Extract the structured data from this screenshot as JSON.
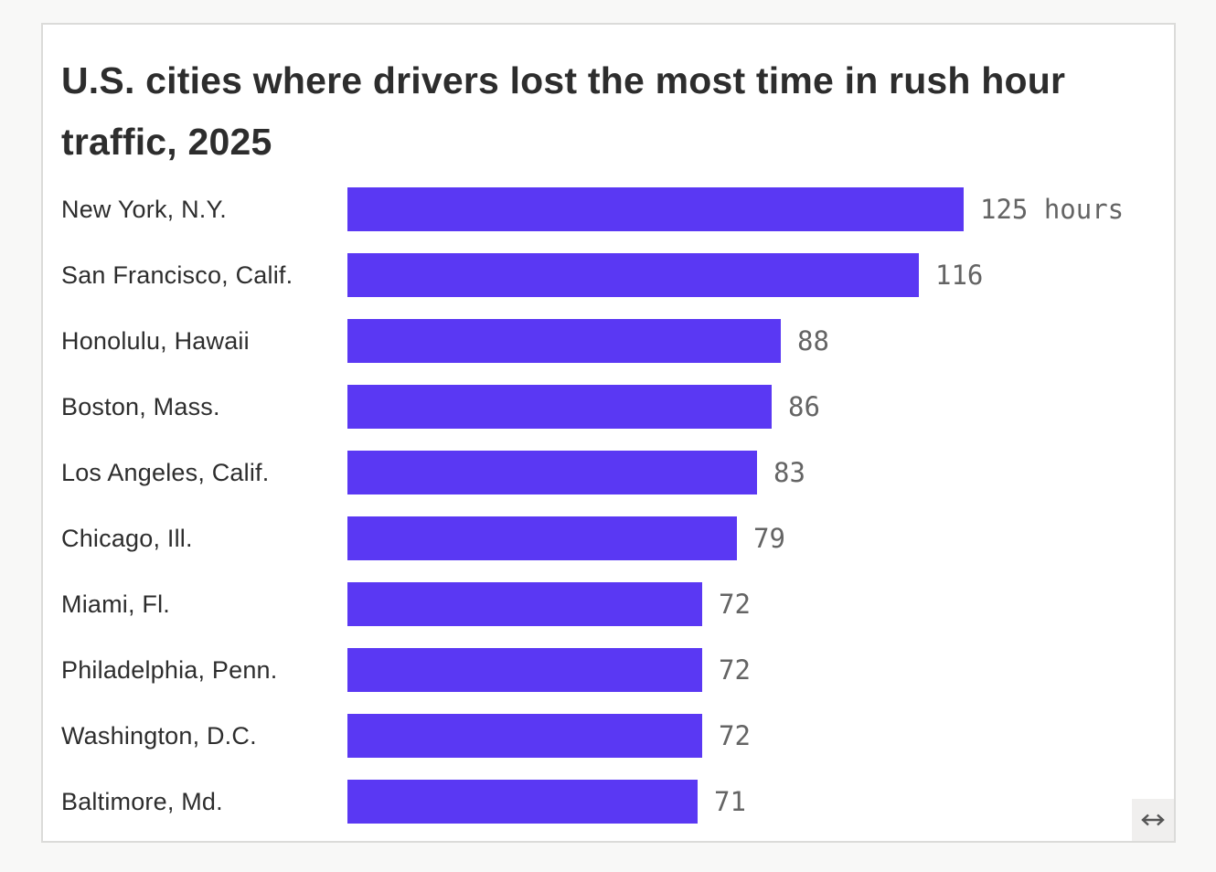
{
  "page": {
    "background_color": "#f8f8f7"
  },
  "card": {
    "background_color": "#ffffff",
    "border_color": "#dbdbd9"
  },
  "chart_data": {
    "type": "bar",
    "orientation": "horizontal",
    "title": "U.S. cities where drivers lost the most time in rush hour traffic, 2025",
    "unit": "hours",
    "categories": [
      "New York, N.Y.",
      "San Francisco, Calif.",
      "Honolulu, Hawaii",
      "Boston, Mass.",
      "Los Angeles, Calif.",
      "Chicago, Ill.",
      "Miami, Fl.",
      "Philadelphia, Penn.",
      "Washington, D.C.",
      "Baltimore, Md."
    ],
    "values": [
      125,
      116,
      88,
      86,
      83,
      79,
      72,
      72,
      72,
      71
    ],
    "value_labels": [
      "125 hours",
      "116",
      "88",
      "86",
      "83",
      "79",
      "72",
      "72",
      "72",
      "71"
    ],
    "xlim": [
      0,
      125
    ],
    "grid": false,
    "legend": false,
    "bar_color": "#5a38f3",
    "category_label_color": "#2d2d2d",
    "value_label_color": "#646464",
    "title_color": "#2d2d2d"
  },
  "resize_handle": {
    "icon": "horizontal-resize-arrow-icon",
    "glyph": "↔",
    "background_color": "#f0efee",
    "arrow_color": "#555555"
  }
}
